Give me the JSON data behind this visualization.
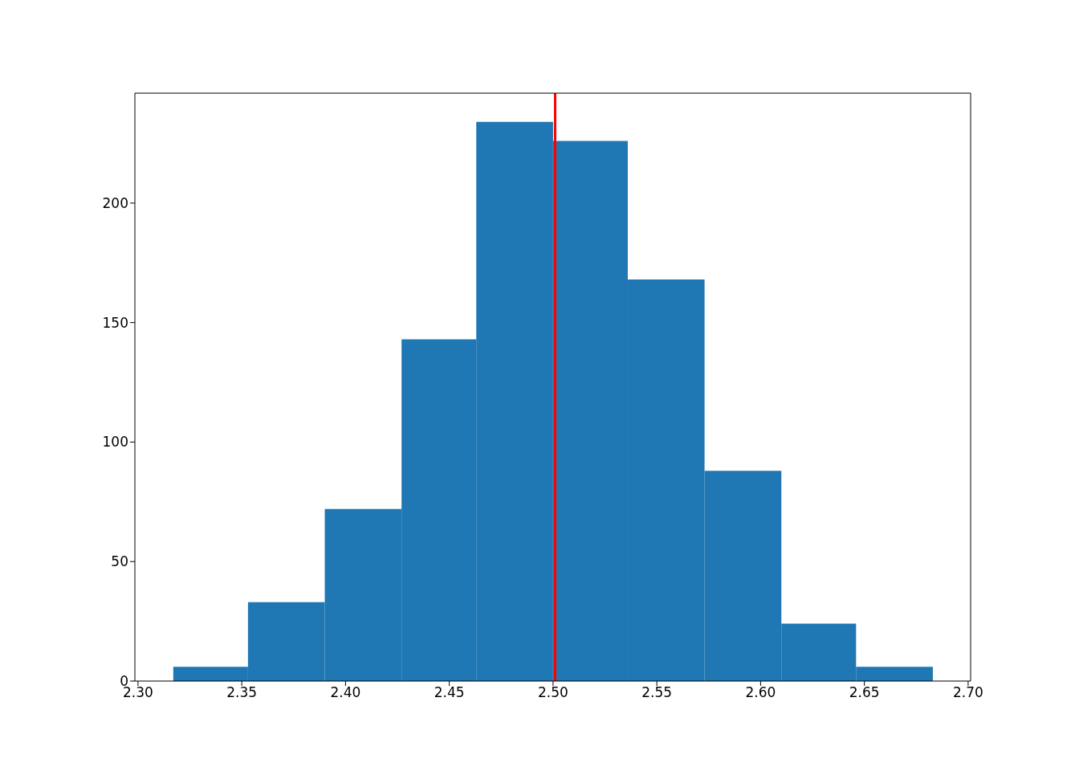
{
  "chart_data": {
    "type": "histogram",
    "bins": [
      2.317,
      2.353,
      2.39,
      2.427,
      2.463,
      2.5,
      2.536,
      2.573,
      2.61,
      2.646,
      2.683
    ],
    "values": [
      6,
      33,
      72,
      143,
      234,
      226,
      168,
      88,
      24,
      6
    ],
    "color": "#1f77b4",
    "xlim": [
      2.2985,
      2.7012
    ],
    "ylim": [
      0,
      246
    ],
    "xticks": [
      {
        "value": 2.3,
        "label": "2.30"
      },
      {
        "value": 2.35,
        "label": "2.35"
      },
      {
        "value": 2.4,
        "label": "2.40"
      },
      {
        "value": 2.45,
        "label": "2.45"
      },
      {
        "value": 2.5,
        "label": "2.50"
      },
      {
        "value": 2.55,
        "label": "2.55"
      },
      {
        "value": 2.6,
        "label": "2.60"
      },
      {
        "value": 2.65,
        "label": "2.65"
      },
      {
        "value": 2.7,
        "label": "2.70"
      }
    ],
    "yticks": [
      0,
      50,
      100,
      150,
      200
    ],
    "ref_lines": [
      {
        "axis": "x",
        "value": 2.501,
        "color": "#ff0000"
      }
    ],
    "grid": false
  }
}
